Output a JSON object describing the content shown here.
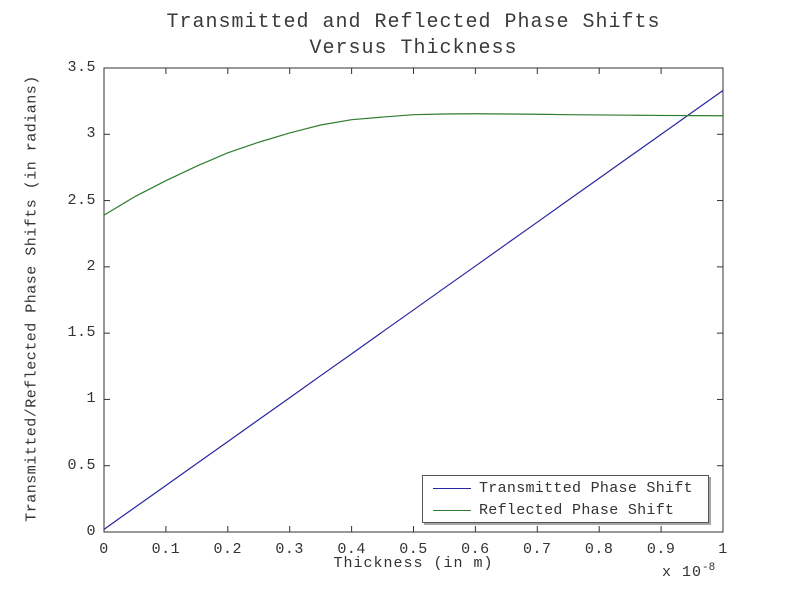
{
  "title": {
    "line1": "Transmitted and Reflected Phase Shifts",
    "line2": "Versus Thickness"
  },
  "axes": {
    "xlabel": "Thickness (in m)",
    "ylabel": "Transmitted/Reflected Phase Shifts (in radians)",
    "x_multiplier": "x 10",
    "x_multiplier_exp": "-8"
  },
  "chart_data": {
    "type": "line",
    "title": "Transmitted and Reflected Phase Shifts Versus Thickness",
    "xlabel": "Thickness (in m)",
    "ylabel": "Transmitted/Reflected Phase Shifts (in radians)",
    "x_units_note": "x values in units of 1e-8 m (axis multiplier x 10^-8)",
    "xlim": [
      0,
      1
    ],
    "ylim": [
      0,
      3.5
    ],
    "xticks": [
      "0",
      "0.1",
      "0.2",
      "0.3",
      "0.4",
      "0.5",
      "0.6",
      "0.7",
      "0.8",
      "0.9",
      "1"
    ],
    "yticks": [
      "0",
      "0.5",
      "1",
      "1.5",
      "2",
      "2.5",
      "3",
      "3.5"
    ],
    "grid": false,
    "legend_position": "lower right",
    "frame_color": "#333333",
    "x": [
      0,
      0.05,
      0.1,
      0.15,
      0.2,
      0.25,
      0.3,
      0.35,
      0.4,
      0.45,
      0.5,
      0.55,
      0.6,
      0.65,
      0.7,
      0.75,
      0.8,
      0.85,
      0.9,
      0.95,
      1.0
    ],
    "series": [
      {
        "name": "Transmitted Phase Shift",
        "color": "#2626a0",
        "values": [
          0.02,
          0.186,
          0.351,
          0.517,
          0.682,
          0.848,
          1.013,
          1.179,
          1.344,
          1.51,
          1.675,
          1.841,
          2.006,
          2.172,
          2.337,
          2.503,
          2.668,
          2.834,
          2.999,
          3.165,
          3.33
        ]
      },
      {
        "name": "Reflected Phase Shift",
        "color": "#2e7d2e",
        "values": [
          2.39,
          2.53,
          2.65,
          2.76,
          2.86,
          2.94,
          3.01,
          3.07,
          3.11,
          3.13,
          3.148,
          3.153,
          3.155,
          3.153,
          3.151,
          3.148,
          3.146,
          3.144,
          3.142,
          3.141,
          3.14
        ]
      }
    ]
  }
}
